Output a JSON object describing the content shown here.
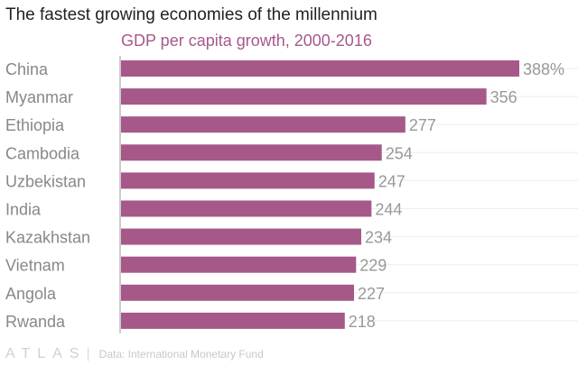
{
  "chart_data": {
    "type": "bar",
    "orientation": "horizontal",
    "title": "The fastest growing economies of the millennium",
    "subtitle": "GDP per capita growth, 2000-2016",
    "categories": [
      "China",
      "Myanmar",
      "Ethiopia",
      "Cambodia",
      "Uzbekistan",
      "India",
      "Kazakhstan",
      "Vietnam",
      "Angola",
      "Rwanda"
    ],
    "values": [
      388,
      356,
      277,
      254,
      247,
      244,
      234,
      229,
      227,
      218
    ],
    "data_labels": [
      "388%",
      "356",
      "277",
      "254",
      "247",
      "244",
      "234",
      "229",
      "227",
      "218"
    ],
    "xlim": [
      0,
      400
    ],
    "bar_color": "#a65989",
    "grid": true
  },
  "footer": {
    "logo": "ATLAS",
    "source": "Data: International Monetary Fund"
  }
}
